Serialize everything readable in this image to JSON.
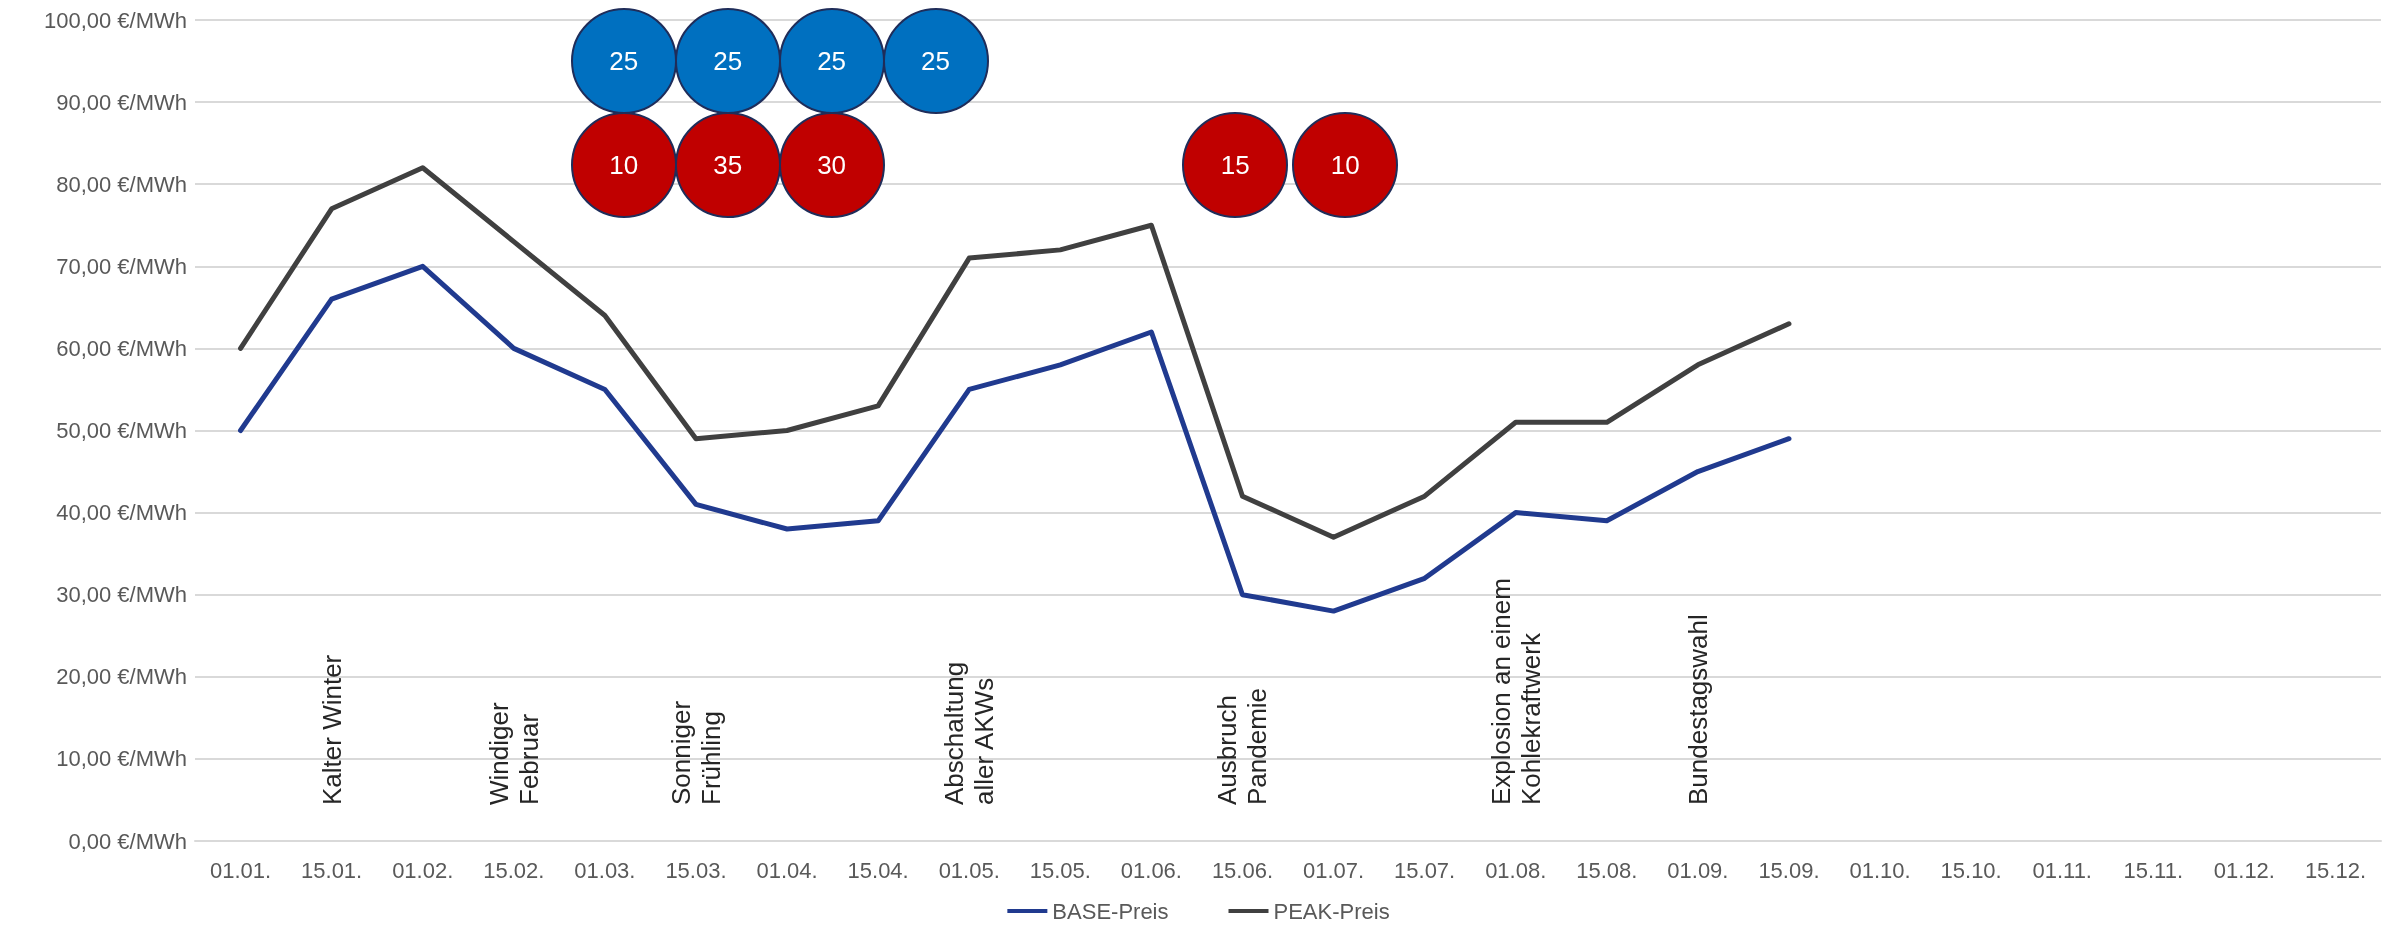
{
  "chart_data": {
    "type": "line",
    "categories": [
      "01.01.",
      "15.01.",
      "01.02.",
      "15.02.",
      "01.03.",
      "15.03.",
      "01.04.",
      "15.04.",
      "01.05.",
      "15.05.",
      "01.06.",
      "15.06.",
      "01.07.",
      "15.07.",
      "01.08.",
      "15.08.",
      "01.09.",
      "15.09.",
      "01.10.",
      "15.10.",
      "01.11.",
      "15.11.",
      "01.12.",
      "15.12."
    ],
    "series": [
      {
        "name": "BASE-Preis",
        "color": "#203a8f",
        "values": [
          50,
          66,
          70,
          60,
          55,
          41,
          38,
          39,
          55,
          58,
          62,
          30,
          28,
          32,
          40,
          39,
          45,
          49,
          null,
          null,
          null,
          null,
          null,
          null
        ]
      },
      {
        "name": "PEAK-Preis",
        "color": "#404040",
        "values": [
          60,
          77,
          82,
          73,
          64,
          49,
          50,
          53,
          71,
          72,
          75,
          42,
          37,
          42,
          51,
          51,
          58,
          63,
          null,
          null,
          null,
          null,
          null,
          null
        ]
      }
    ],
    "ylim": [
      0,
      100
    ],
    "yticks": [
      {
        "value": 0,
        "label": "0,00 €/MWh"
      },
      {
        "value": 10,
        "label": "10,00 €/MWh"
      },
      {
        "value": 20,
        "label": "20,00 €/MWh"
      },
      {
        "value": 30,
        "label": "30,00 €/MWh"
      },
      {
        "value": 40,
        "label": "40,00 €/MWh"
      },
      {
        "value": 50,
        "label": "50,00 €/MWh"
      },
      {
        "value": 60,
        "label": "60,00 €/MWh"
      },
      {
        "value": 70,
        "label": "70,00 €/MWh"
      },
      {
        "value": 80,
        "label": "80,00 €/MWh"
      },
      {
        "value": 90,
        "label": "90,00 €/MWh"
      },
      {
        "value": 100,
        "label": "100,00 €/MWh"
      }
    ],
    "annotations": [
      "Kalter Winter",
      "Windiger\nFebruar",
      "Sonniger\nFrühling",
      "Abschaltung\naller AKWs",
      "Ausbruch\nPandemie",
      "Explosion an einem\nKohlekraftwerk",
      "Bundestagswahl",
      "25",
      "25",
      "25",
      "25",
      "10",
      "35",
      "30",
      "15",
      "10"
    ],
    "grid": "y",
    "legend": "bottom",
    "marker": "none",
    "line_style": "solid"
  }
}
